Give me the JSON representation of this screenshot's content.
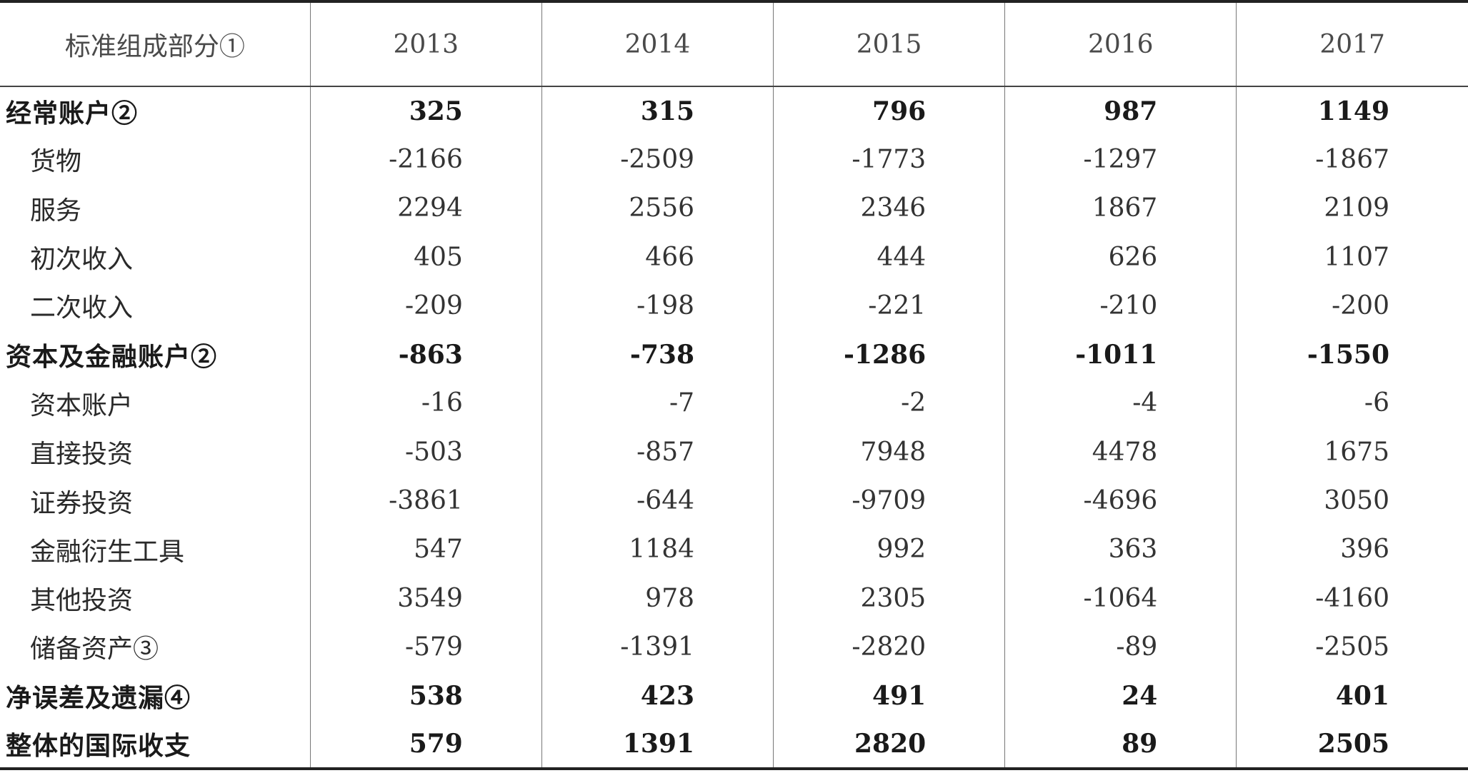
{
  "header": {
    "label": "标准组成部分①",
    "years": [
      "2013",
      "2014",
      "2015",
      "2016",
      "2017"
    ]
  },
  "rows": [
    {
      "label": "经常账户②",
      "bold": true,
      "indent": false,
      "values": [
        "325",
        "315",
        "796",
        "987",
        "1149"
      ]
    },
    {
      "label": "货物",
      "bold": false,
      "indent": true,
      "values": [
        "-2166",
        "-2509",
        "-1773",
        "-1297",
        "-1867"
      ]
    },
    {
      "label": "服务",
      "bold": false,
      "indent": true,
      "values": [
        "2294",
        "2556",
        "2346",
        "1867",
        "2109"
      ]
    },
    {
      "label": "初次收入",
      "bold": false,
      "indent": true,
      "values": [
        "405",
        "466",
        "444",
        "626",
        "1107"
      ]
    },
    {
      "label": "二次收入",
      "bold": false,
      "indent": true,
      "values": [
        "-209",
        "-198",
        "-221",
        "-210",
        "-200"
      ]
    },
    {
      "label": "资本及金融账户②",
      "bold": true,
      "indent": false,
      "values": [
        "-863",
        "-738",
        "-1286",
        "-1011",
        "-1550"
      ]
    },
    {
      "label": "资本账户",
      "bold": false,
      "indent": true,
      "values": [
        "-16",
        "-7",
        "-2",
        "-4",
        "-6"
      ]
    },
    {
      "label": "直接投资",
      "bold": false,
      "indent": true,
      "values": [
        "-503",
        "-857",
        "7948",
        "4478",
        "1675"
      ]
    },
    {
      "label": "证券投资",
      "bold": false,
      "indent": true,
      "values": [
        "-3861",
        "-644",
        "-9709",
        "-4696",
        "3050"
      ]
    },
    {
      "label": "金融衍生工具",
      "bold": false,
      "indent": true,
      "values": [
        "547",
        "1184",
        "992",
        "363",
        "396"
      ]
    },
    {
      "label": "其他投资",
      "bold": false,
      "indent": true,
      "values": [
        "3549",
        "978",
        "2305",
        "-1064",
        "-4160"
      ]
    },
    {
      "label": "储备资产③",
      "bold": false,
      "indent": true,
      "values": [
        "-579",
        "-1391",
        "-2820",
        "-89",
        "-2505"
      ]
    },
    {
      "label": "净误差及遗漏④",
      "bold": true,
      "indent": false,
      "values": [
        "538",
        "423",
        "491",
        "24",
        "401"
      ]
    },
    {
      "label": "整体的国际收支",
      "bold": true,
      "indent": false,
      "values": [
        "579",
        "1391",
        "2820",
        "89",
        "2505"
      ]
    }
  ]
}
